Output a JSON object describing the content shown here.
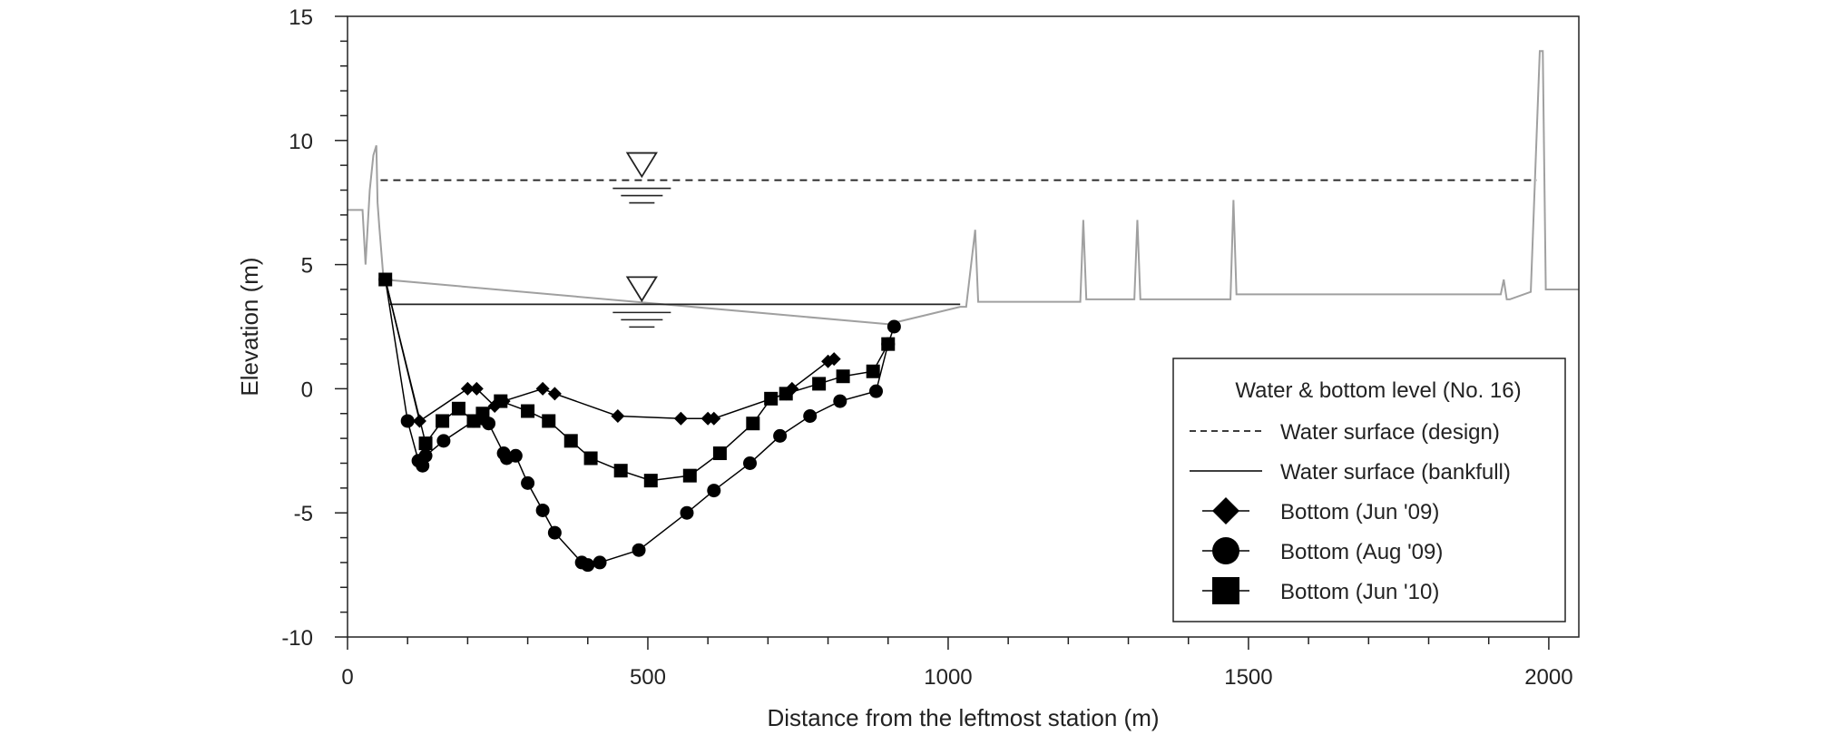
{
  "chart_data": {
    "type": "line",
    "title": "",
    "xlabel": "Distance from the leftmost station (m)",
    "ylabel": "Elevation (m)",
    "xlim": [
      0,
      2050
    ],
    "ylim": [
      -10,
      15
    ],
    "xticks": [
      0,
      500,
      1000,
      1500,
      2000
    ],
    "yticks": [
      -10,
      -5,
      0,
      5,
      10,
      15
    ],
    "grid": false,
    "legend_position": "bottom-right",
    "legend_title": "Water & bottom level (No. 16)",
    "water_levels": [
      {
        "name": "Water surface (design)",
        "style": "dashed",
        "elevation": 8.4,
        "x_range": [
          55,
          1980
        ]
      },
      {
        "name": "Water surface (bankfull)",
        "style": "solid",
        "elevation": 3.4,
        "x_range": [
          70,
          1020
        ]
      }
    ],
    "ground_profile": {
      "color": "#a0a0a0",
      "x": [
        0,
        25,
        30,
        37,
        43,
        48,
        50,
        53,
        60,
        900,
        1020,
        1030,
        1045,
        1050,
        1055,
        1220,
        1225,
        1230,
        1235,
        1310,
        1315,
        1320,
        1325,
        1470,
        1475,
        1480,
        1485,
        1920,
        1925,
        1930,
        1935,
        1970,
        1985,
        1990,
        1995,
        2010,
        2050
      ],
      "y": [
        7.2,
        7.2,
        5.0,
        8.0,
        9.4,
        9.8,
        7.5,
        6.5,
        4.4,
        2.6,
        3.3,
        3.3,
        6.4,
        3.5,
        3.5,
        3.5,
        6.8,
        3.6,
        3.6,
        3.6,
        6.8,
        3.6,
        3.6,
        3.6,
        7.6,
        3.8,
        3.8,
        3.8,
        4.4,
        3.6,
        3.6,
        3.9,
        13.6,
        13.6,
        4.0,
        4.0,
        4.0
      ]
    },
    "series": [
      {
        "name": "Bottom (Jun '09)",
        "marker": "diamond",
        "x": [
          63,
          120,
          200,
          215,
          245,
          260,
          325,
          345,
          450,
          555,
          600,
          610,
          730,
          740,
          800,
          810
        ],
        "y": [
          4.4,
          -1.3,
          0.0,
          0.0,
          -0.7,
          -0.5,
          0.0,
          -0.2,
          -1.1,
          -1.2,
          -1.2,
          -1.2,
          -0.2,
          0.0,
          1.1,
          1.2
        ]
      },
      {
        "name": "Bottom (Aug '09)",
        "marker": "circle",
        "x": [
          63,
          100,
          118,
          125,
          130,
          160,
          210,
          225,
          235,
          260,
          265,
          280,
          300,
          325,
          345,
          390,
          400,
          420,
          485,
          565,
          610,
          670,
          720,
          770,
          820,
          880,
          900,
          910
        ],
        "y": [
          4.4,
          -1.3,
          -2.9,
          -3.1,
          -2.7,
          -2.1,
          -1.3,
          -1.2,
          -1.4,
          -2.6,
          -2.8,
          -2.7,
          -3.8,
          -4.9,
          -5.8,
          -7.0,
          -7.1,
          -7.0,
          -6.5,
          -5.0,
          -4.1,
          -3.0,
          -1.9,
          -1.1,
          -0.5,
          -0.1,
          1.8,
          2.5
        ]
      },
      {
        "name": "Bottom (Jun '10)",
        "marker": "square",
        "x": [
          63,
          130,
          158,
          185,
          210,
          225,
          255,
          300,
          335,
          372,
          405,
          455,
          505,
          570,
          620,
          675,
          705,
          730,
          785,
          825,
          875,
          900
        ],
        "y": [
          4.4,
          -2.2,
          -1.3,
          -0.8,
          -1.3,
          -1.0,
          -0.5,
          -0.9,
          -1.3,
          -2.1,
          -2.8,
          -3.3,
          -3.7,
          -3.5,
          -2.6,
          -1.4,
          -0.4,
          -0.2,
          0.2,
          0.5,
          0.7,
          1.8
        ]
      }
    ]
  }
}
